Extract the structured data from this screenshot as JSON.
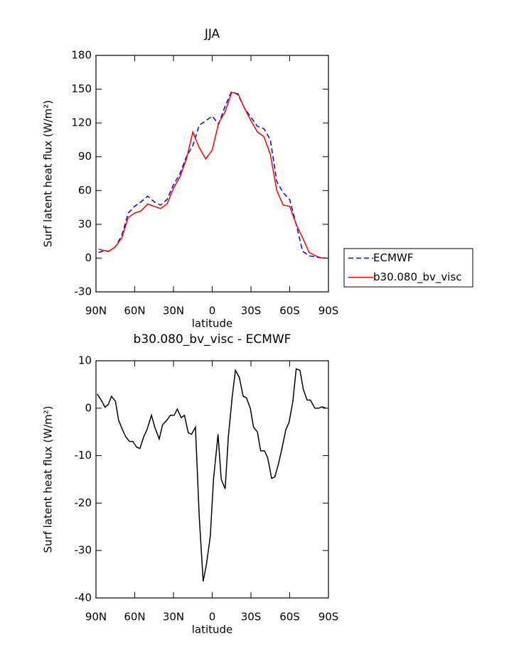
{
  "chart_data": [
    {
      "type": "line",
      "title": "JJA",
      "xlabel": "latitude",
      "ylabel": "Surf latent heat flux (W/m²)",
      "x": [
        88,
        85,
        80,
        75,
        70,
        65,
        60,
        55,
        50,
        45,
        40,
        35,
        30,
        25,
        20,
        15,
        10,
        5,
        0,
        -5,
        -10,
        -15,
        -20,
        -25,
        -30,
        -35,
        -40,
        -45,
        -50,
        -55,
        -60,
        -65,
        -70,
        -75,
        -80,
        -85,
        -88
      ],
      "series": [
        {
          "name": "ECMWF",
          "color": "#0000ff",
          "dash": true,
          "values": [
            5,
            6,
            6,
            10,
            20,
            40,
            46,
            50,
            55,
            50,
            47,
            52,
            65,
            75,
            90,
            100,
            118,
            122,
            126,
            119,
            135,
            148,
            145,
            133,
            125,
            117,
            115,
            105,
            68,
            58,
            52,
            30,
            6,
            2,
            1,
            0,
            0
          ]
        },
        {
          "name": "b30.080_bv_visc",
          "color": "#ff0000",
          "dash": false,
          "values": [
            8,
            7,
            6,
            10,
            18,
            36,
            40,
            42,
            48,
            46,
            44,
            48,
            62,
            72,
            88,
            112,
            98,
            88,
            96,
            120,
            130,
            147,
            146,
            133,
            122,
            112,
            108,
            92,
            60,
            47,
            46,
            30,
            18,
            5,
            2,
            0,
            0
          ]
        }
      ],
      "xlim": [
        90,
        -90
      ],
      "xticks": [
        {
          "value": 90,
          "label": "90N"
        },
        {
          "value": 60,
          "label": "60N"
        },
        {
          "value": 30,
          "label": "30N"
        },
        0,
        {
          "value": -30,
          "label": "30S"
        },
        {
          "value": -60,
          "label": "60S"
        },
        {
          "value": -90,
          "label": "90S"
        }
      ],
      "ylim": [
        -30,
        180
      ],
      "yticks": [
        -30,
        0,
        30,
        60,
        90,
        120,
        150,
        180
      ],
      "legend": "right"
    },
    {
      "type": "line",
      "title": "b30.080_bv_visc - ECMWF",
      "xlabel": "latitude",
      "ylabel": "Surf latent heat flux (W/m²)",
      "x": [
        89,
        85.5,
        83,
        80.5,
        78,
        75,
        72.5,
        69.5,
        67,
        64,
        61.5,
        58.5,
        56,
        53,
        50.5,
        47,
        44.5,
        41,
        38.5,
        35,
        32.5,
        29.5,
        27,
        24,
        21.5,
        18.5,
        16,
        13,
        10,
        7,
        4.5,
        1.5,
        -1,
        -4.5,
        -7,
        -10,
        -12.5,
        -15.5,
        -18,
        -21,
        -24,
        -26.5,
        -29.5,
        -32,
        -35,
        -37.5,
        -40.5,
        -43,
        -46,
        -48.5,
        -51.5,
        -54,
        -57,
        -59.5,
        -62.5,
        -65,
        -68,
        -70.5,
        -73.5,
        -76,
        -79.5,
        -82.5,
        -85,
        -88
      ],
      "values": [
        3,
        1.5,
        0.2,
        0.8,
        2.5,
        1.5,
        -2.5,
        -4.5,
        -6,
        -7,
        -7,
        -8.2,
        -8.5,
        -6,
        -4.5,
        -1.5,
        -4,
        -6.5,
        -3.5,
        -2.5,
        -1.5,
        -1.5,
        -0.2,
        -2,
        -1.5,
        -5.2,
        -5.5,
        -4,
        -23,
        -36.5,
        -33,
        -27,
        -15,
        -5.5,
        -15,
        -17,
        -6,
        2.5,
        8,
        6.5,
        2.5,
        2.2,
        0,
        -4,
        -5,
        -9,
        -9,
        -10.5,
        -14.8,
        -14.5,
        -11.5,
        -8.5,
        -4.5,
        -3,
        1.5,
        8.3,
        8,
        4,
        1.7,
        1.7,
        0,
        0,
        0.3,
        0
      ],
      "color": "#000000",
      "xlim": [
        90,
        -90
      ],
      "xticks": [
        {
          "value": 90,
          "label": "90N"
        },
        {
          "value": 60,
          "label": "60N"
        },
        {
          "value": 30,
          "label": "30N"
        },
        0,
        {
          "value": -30,
          "label": "30S"
        },
        {
          "value": -60,
          "label": "60S"
        },
        {
          "value": -90,
          "label": "90S"
        }
      ],
      "ylim": [
        -40,
        10
      ],
      "yticks": [
        -40,
        -30,
        -20,
        -10,
        0,
        10
      ]
    }
  ]
}
